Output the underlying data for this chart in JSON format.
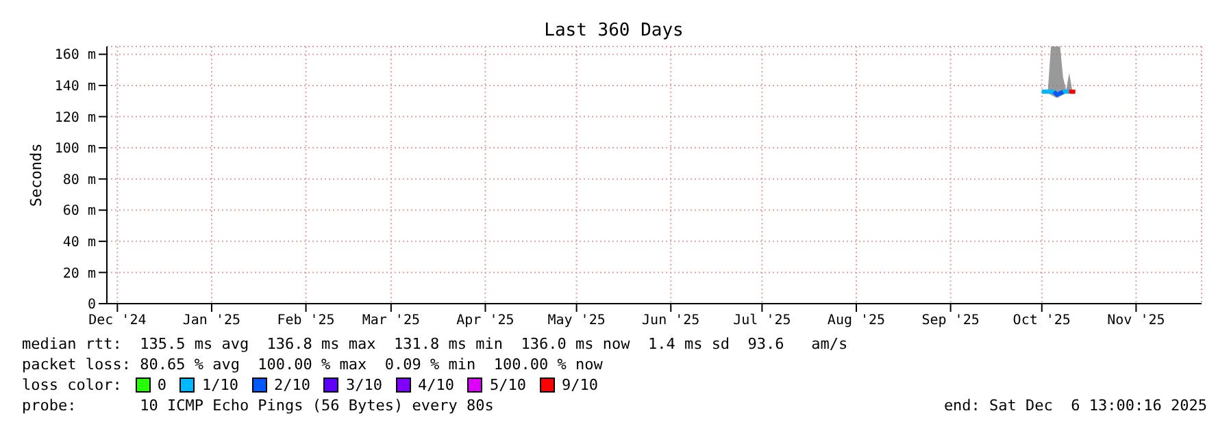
{
  "chart_data": {
    "type": "line",
    "title": "Last 360 Days",
    "ylabel": "Seconds",
    "x": [
      "2025-10-15",
      "2025-10-16",
      "2025-10-17",
      "2025-10-18",
      "2025-10-19",
      "2025-10-20",
      "2025-10-21",
      "2025-10-22",
      "2025-10-23",
      "2025-10-24",
      "2025-10-25",
      "2025-10-26"
    ],
    "xlim": [
      "2024-12-11T13:00",
      "2025-12-06T13:00"
    ],
    "xticks": [
      {
        "value": "2024-12-15",
        "label": "Dec '24"
      },
      {
        "value": "2025-01-15",
        "label": "Jan '25"
      },
      {
        "value": "2025-02-15",
        "label": "Feb '25"
      },
      {
        "value": "2025-03-15",
        "label": "Mar '25"
      },
      {
        "value": "2025-04-15",
        "label": "Apr '25"
      },
      {
        "value": "2025-05-15",
        "label": "May '25"
      },
      {
        "value": "2025-06-15",
        "label": "Jun '25"
      },
      {
        "value": "2025-07-15",
        "label": "Jul '25"
      },
      {
        "value": "2025-08-15",
        "label": "Aug '25"
      },
      {
        "value": "2025-09-15",
        "label": "Sep '25"
      },
      {
        "value": "2025-10-15",
        "label": "Oct '25"
      },
      {
        "value": "2025-11-15",
        "label": "Nov '25"
      }
    ],
    "ylim": [
      0,
      165
    ],
    "yticks": [
      0,
      {
        "value": 20,
        "label": "20 m"
      },
      {
        "value": 40,
        "label": "40 m"
      },
      {
        "value": 60,
        "label": "60 m"
      },
      {
        "value": 80,
        "label": "80 m"
      },
      {
        "value": 100,
        "label": "100 m"
      },
      {
        "value": 120,
        "label": "120 m"
      },
      {
        "value": 140,
        "label": "140 m"
      },
      {
        "value": 160,
        "label": "160 m"
      }
    ],
    "legend_title": "loss color:",
    "series": [
      {
        "name": "0",
        "color": "#26ff00",
        "values": [
          null,
          null,
          null,
          null,
          null,
          null,
          null,
          null,
          null,
          null,
          null,
          null
        ]
      },
      {
        "name": "1/10",
        "color": "#00b8ff",
        "values": [
          136,
          136,
          136,
          136,
          136,
          null,
          null,
          136,
          136,
          136,
          null,
          null
        ],
        "lower": [
          135,
          135,
          135,
          134,
          133,
          132,
          133,
          134,
          135,
          135,
          135,
          135
        ],
        "upper": [
          137,
          137,
          137,
          165,
          165,
          165,
          165,
          145,
          137,
          148,
          137,
          137
        ]
      },
      {
        "name": "2/10",
        "color": "#0059ff",
        "values": [
          null,
          null,
          null,
          null,
          136,
          134,
          135,
          136,
          null,
          null,
          null,
          null
        ]
      },
      {
        "name": "3/10",
        "color": "#5e00ff",
        "values": [
          null,
          null,
          null,
          null,
          null,
          null,
          null,
          null,
          null,
          null,
          null,
          null
        ]
      },
      {
        "name": "4/10",
        "color": "#7e00ff",
        "values": [
          null,
          null,
          null,
          null,
          null,
          null,
          null,
          null,
          null,
          null,
          null,
          null
        ]
      },
      {
        "name": "5/10",
        "color": "#dd00ff",
        "values": [
          null,
          null,
          null,
          null,
          null,
          null,
          null,
          null,
          null,
          null,
          null,
          null
        ]
      },
      {
        "name": "9/10",
        "color": "#ff0000",
        "values": [
          null,
          null,
          null,
          null,
          null,
          null,
          null,
          null,
          null,
          136,
          136,
          136
        ]
      }
    ],
    "grid": true,
    "legend": "bottom",
    "marker": "none",
    "line_style": "solid",
    "annotations": [
      "median rtt:  135.5 ms avg  136.8 ms max  131.8 ms min  136.0 ms now  1.4 ms sd  93.6   am/s",
      "packet loss: 80.65 % avg  100.00 % max  0.09 % min  100.00 % now",
      "probe:       10 ICMP Echo Pings (56 Bytes) every 80s",
      "end: Sat Dec  6 13:00:16 2025"
    ]
  }
}
